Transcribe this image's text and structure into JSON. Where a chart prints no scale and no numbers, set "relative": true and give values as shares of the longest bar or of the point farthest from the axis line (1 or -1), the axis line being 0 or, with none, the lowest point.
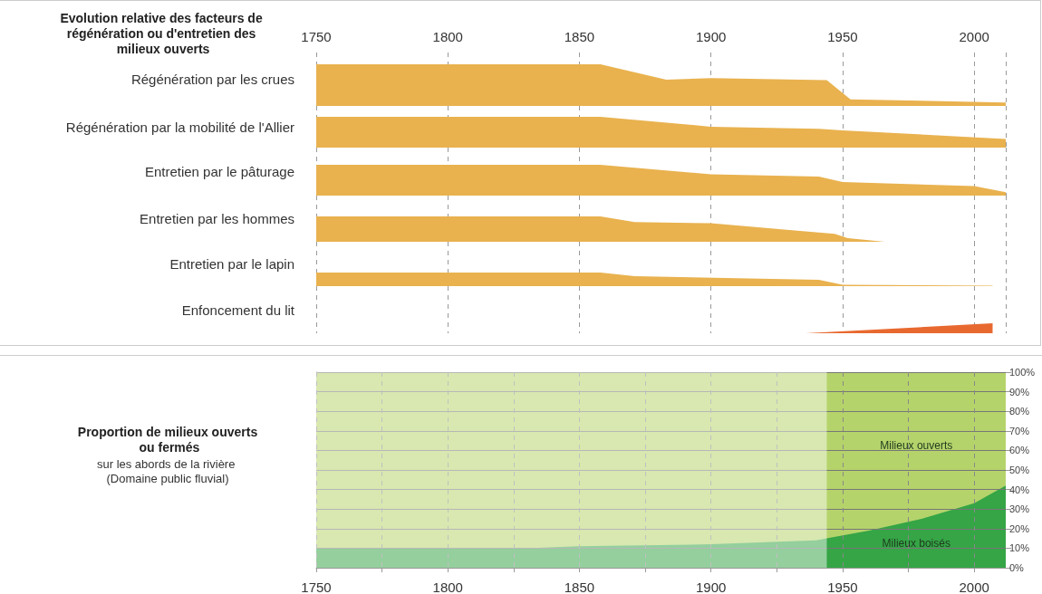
{
  "chart_data": [
    {
      "type": "area",
      "relative": true,
      "title": "Evolution relative des facteurs de régénération ou d'entretien des milieux ouverts",
      "xlim": [
        1750,
        2012
      ],
      "xticks": [
        1750,
        1800,
        1850,
        1900,
        1950,
        2000
      ],
      "grid": "x",
      "marker": "none",
      "series": [
        {
          "name": "Régénération par les crues",
          "color": "#e9b24f",
          "x": [
            1750,
            1858,
            1883,
            1900,
            1944,
            1953,
            2012
          ],
          "values": [
            1.0,
            1.0,
            0.63,
            0.67,
            0.62,
            0.16,
            0.08
          ]
        }
      ]
    },
    {
      "type": "area",
      "relative": true,
      "xlim": [
        1750,
        2012
      ],
      "xticks": [
        1750,
        1800,
        1850,
        1900,
        1950,
        2000
      ],
      "tick_labels": false,
      "grid": "x",
      "marker": "none",
      "series": [
        {
          "name": "Régénération par la mobilité de l'Allier",
          "color": "#e9b24f",
          "x": [
            1750,
            1858,
            1900,
            1941,
            1950,
            2012
          ],
          "values": [
            1.0,
            1.0,
            0.68,
            0.61,
            0.56,
            0.28
          ]
        }
      ]
    },
    {
      "type": "area",
      "relative": true,
      "xlim": [
        1750,
        2012
      ],
      "xticks": [
        1750,
        1800,
        1850,
        1900,
        1950,
        2000
      ],
      "tick_labels": false,
      "grid": "x",
      "marker": "none",
      "series": [
        {
          "name": "Entretien par le pâturage",
          "color": "#e9b24f",
          "x": [
            1750,
            1858,
            1900,
            1941,
            1950,
            2000,
            2012
          ],
          "values": [
            1.0,
            1.0,
            0.69,
            0.62,
            0.44,
            0.31,
            0.11
          ]
        }
      ]
    },
    {
      "type": "area",
      "relative": true,
      "xlim": [
        1750,
        2012
      ],
      "xticks": [
        1750,
        1800,
        1850,
        1900,
        1950,
        2000
      ],
      "tick_labels": false,
      "grid": "x",
      "marker": "none",
      "series": [
        {
          "name": "Entretien par les hommes",
          "color": "#e9b24f",
          "x": [
            1750,
            1858,
            1871,
            1900,
            1947,
            1952,
            1966
          ],
          "values": [
            1.0,
            1.0,
            0.78,
            0.73,
            0.31,
            0.14,
            0
          ]
        }
      ]
    },
    {
      "type": "area",
      "relative": true,
      "xlim": [
        1750,
        2012
      ],
      "xticks": [
        1750,
        1800,
        1850,
        1900,
        1950,
        2000
      ],
      "tick_labels": false,
      "grid": "x",
      "marker": "none",
      "series": [
        {
          "name": "Entretien par le lapin",
          "color": "#e9b24f",
          "x": [
            1750,
            1858,
            1871,
            1941,
            1950,
            2007
          ],
          "values": [
            1.0,
            1.0,
            0.73,
            0.47,
            0.1,
            0.03
          ]
        }
      ]
    },
    {
      "type": "area",
      "relative": true,
      "xlim": [
        1750,
        2012
      ],
      "xticks": [
        1750,
        1800,
        1850,
        1900,
        1950,
        2000
      ],
      "tick_labels": false,
      "grid": "x",
      "marker": "none",
      "series": [
        {
          "name": "Enfoncement du lit",
          "color": "#e8692f",
          "x": [
            1936,
            2007
          ],
          "values": [
            0,
            1.0
          ]
        }
      ]
    },
    {
      "type": "area",
      "stacked": true,
      "title": "Proportion de milieux ouverts ou fermés",
      "subtitle": "sur les abords de la rivière (Domaine public fluvial)",
      "xlim": [
        1750,
        2012
      ],
      "xticks": [
        1750,
        {
          "value": 1775,
          "label": null
        },
        1800,
        {
          "value": 1825,
          "label": null
        },
        1850,
        {
          "value": 1875,
          "label": null
        },
        1900,
        {
          "value": 1925,
          "label": null
        },
        1950,
        {
          "value": 1975,
          "label": null
        },
        2000
      ],
      "y2lim": [
        0,
        100
      ],
      "y2ticks": [
        {
          "value": 0,
          "label": "0%"
        },
        {
          "value": 10,
          "label": "10%"
        },
        {
          "value": 20,
          "label": "20%"
        },
        {
          "value": 30,
          "label": "30%"
        },
        {
          "value": 40,
          "label": "40%"
        },
        {
          "value": 50,
          "label": "50%"
        },
        {
          "value": 60,
          "label": "60%"
        },
        {
          "value": 70,
          "label": "70%"
        },
        {
          "value": 80,
          "label": "80%"
        },
        {
          "value": 90,
          "label": "90%"
        },
        {
          "value": 100,
          "label": "100%"
        }
      ],
      "grid": true,
      "marker": "none",
      "bands": [
        {
          "axis": "x",
          "from": 1750,
          "to": 1944,
          "color": "#ffffff"
        }
      ],
      "x": [
        1750,
        1800,
        1830,
        1850,
        1900,
        1940,
        1944,
        1960,
        1980,
        2000,
        2012
      ],
      "series": [
        {
          "name": "Milieux boisés",
          "color": "#35a546",
          "axis": "y2",
          "values": [
            10,
            10,
            10,
            11,
            12,
            14,
            15,
            19,
            25,
            33,
            42
          ]
        },
        {
          "name": "Milieux ouverts",
          "color": "#b5d36b",
          "axis": "y2",
          "values": [
            90,
            90,
            90,
            89,
            88,
            86,
            85,
            81,
            75,
            67,
            58
          ]
        }
      ]
    }
  ]
}
